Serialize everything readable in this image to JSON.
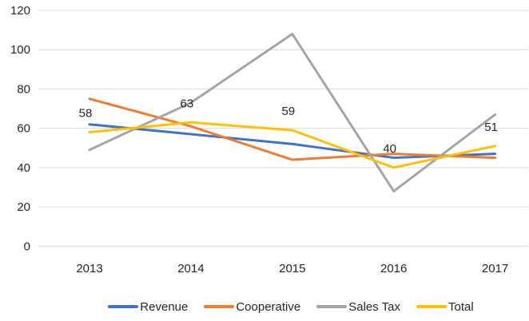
{
  "chart_data": {
    "type": "line",
    "title": "",
    "xlabel": "",
    "ylabel": "",
    "categories": [
      "2013",
      "2014",
      "2015",
      "2016",
      "2017"
    ],
    "series": [
      {
        "name": "Revenue",
        "color": "#4472C4",
        "values": [
          62,
          57,
          52,
          45,
          47
        ],
        "show_labels": false
      },
      {
        "name": "Cooperative",
        "color": "#ED7D31",
        "values": [
          75,
          61,
          44,
          47,
          45
        ],
        "show_labels": false
      },
      {
        "name": "Sales Tax",
        "color": "#A5A5A5",
        "values": [
          49,
          73,
          108,
          28,
          67
        ],
        "show_labels": false
      },
      {
        "name": "Total",
        "color": "#FFC000",
        "values": [
          58,
          63,
          59,
          40,
          51
        ],
        "show_labels": true
      }
    ],
    "data_labels": [
      "58",
      "63",
      "59",
      "40",
      "51"
    ],
    "y_axis": {
      "min": 0,
      "max": 120,
      "step": 20,
      "tick_labels": [
        "0",
        "20",
        "40",
        "60",
        "80",
        "100",
        "120"
      ]
    },
    "grid": "horizontal",
    "legend_position": "bottom",
    "styles": {
      "background_color": "#FFFFFF",
      "gridline_color": "#D9D9D9",
      "text_color": "#262626",
      "tick_font_size": 15,
      "data_label_font_size": 15,
      "line_width": 3
    }
  }
}
